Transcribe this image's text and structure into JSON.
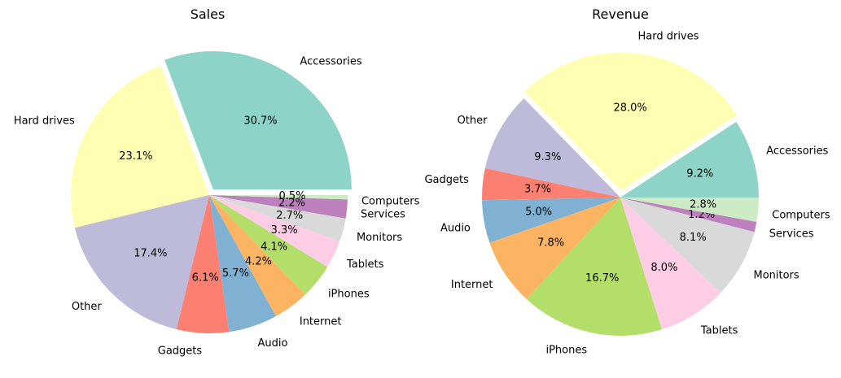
{
  "chart_data": [
    {
      "type": "pie",
      "title": "Sales",
      "start_angle_deg": 0,
      "direction": "counterclockwise",
      "slices": [
        {
          "label": "Accessories",
          "value": 30.7,
          "pct_label": "30.7%",
          "color": "#8dd3c7",
          "explode": true
        },
        {
          "label": "Hard drives",
          "value": 23.1,
          "pct_label": "23.1%",
          "color": "#ffffb3",
          "explode": false
        },
        {
          "label": "Other",
          "value": 17.4,
          "pct_label": "17.4%",
          "color": "#bebada",
          "explode": false
        },
        {
          "label": "Gadgets",
          "value": 6.1,
          "pct_label": "6.1%",
          "color": "#fb8072",
          "explode": false
        },
        {
          "label": "Audio",
          "value": 5.7,
          "pct_label": "5.7%",
          "color": "#80b1d3",
          "explode": false
        },
        {
          "label": "Internet",
          "value": 4.2,
          "pct_label": "4.2%",
          "color": "#fdb462",
          "explode": false
        },
        {
          "label": "iPhones",
          "value": 4.1,
          "pct_label": "4.1%",
          "color": "#b3de69",
          "explode": false
        },
        {
          "label": "Tablets",
          "value": 3.3,
          "pct_label": "3.3%",
          "color": "#fccde5",
          "explode": false
        },
        {
          "label": "Monitors",
          "value": 2.7,
          "pct_label": "2.7%",
          "color": "#d9d9d9",
          "explode": false
        },
        {
          "label": "Services",
          "value": 2.2,
          "pct_label": "2.2%",
          "color": "#bc80bd",
          "explode": false
        },
        {
          "label": "Computers",
          "value": 0.5,
          "pct_label": "0.5%",
          "color": "#ccebc5",
          "explode": false
        }
      ]
    },
    {
      "type": "pie",
      "title": "Revenue",
      "start_angle_deg": 0,
      "direction": "counterclockwise",
      "slices": [
        {
          "label": "Accessories",
          "value": 9.2,
          "pct_label": "9.2%",
          "color": "#8dd3c7",
          "explode": false
        },
        {
          "label": "Hard drives",
          "value": 28.0,
          "pct_label": "28.0%",
          "color": "#ffffb3",
          "explode": true
        },
        {
          "label": "Other",
          "value": 9.3,
          "pct_label": "9.3%",
          "color": "#bebada",
          "explode": false
        },
        {
          "label": "Gadgets",
          "value": 3.7,
          "pct_label": "3.7%",
          "color": "#fb8072",
          "explode": false
        },
        {
          "label": "Audio",
          "value": 5.0,
          "pct_label": "5.0%",
          "color": "#80b1d3",
          "explode": false
        },
        {
          "label": "Internet",
          "value": 7.8,
          "pct_label": "7.8%",
          "color": "#fdb462",
          "explode": false
        },
        {
          "label": "iPhones",
          "value": 16.7,
          "pct_label": "16.7%",
          "color": "#b3de69",
          "explode": false
        },
        {
          "label": "Tablets",
          "value": 8.0,
          "pct_label": "8.0%",
          "color": "#fccde5",
          "explode": false
        },
        {
          "label": "Monitors",
          "value": 8.1,
          "pct_label": "8.1%",
          "color": "#d9d9d9",
          "explode": false
        },
        {
          "label": "Services",
          "value": 1.2,
          "pct_label": "1.2%",
          "color": "#bc80bd",
          "explode": false
        },
        {
          "label": "Computers",
          "value": 2.8,
          "pct_label": "2.8%",
          "color": "#ccebc5",
          "explode": false
        }
      ]
    }
  ]
}
